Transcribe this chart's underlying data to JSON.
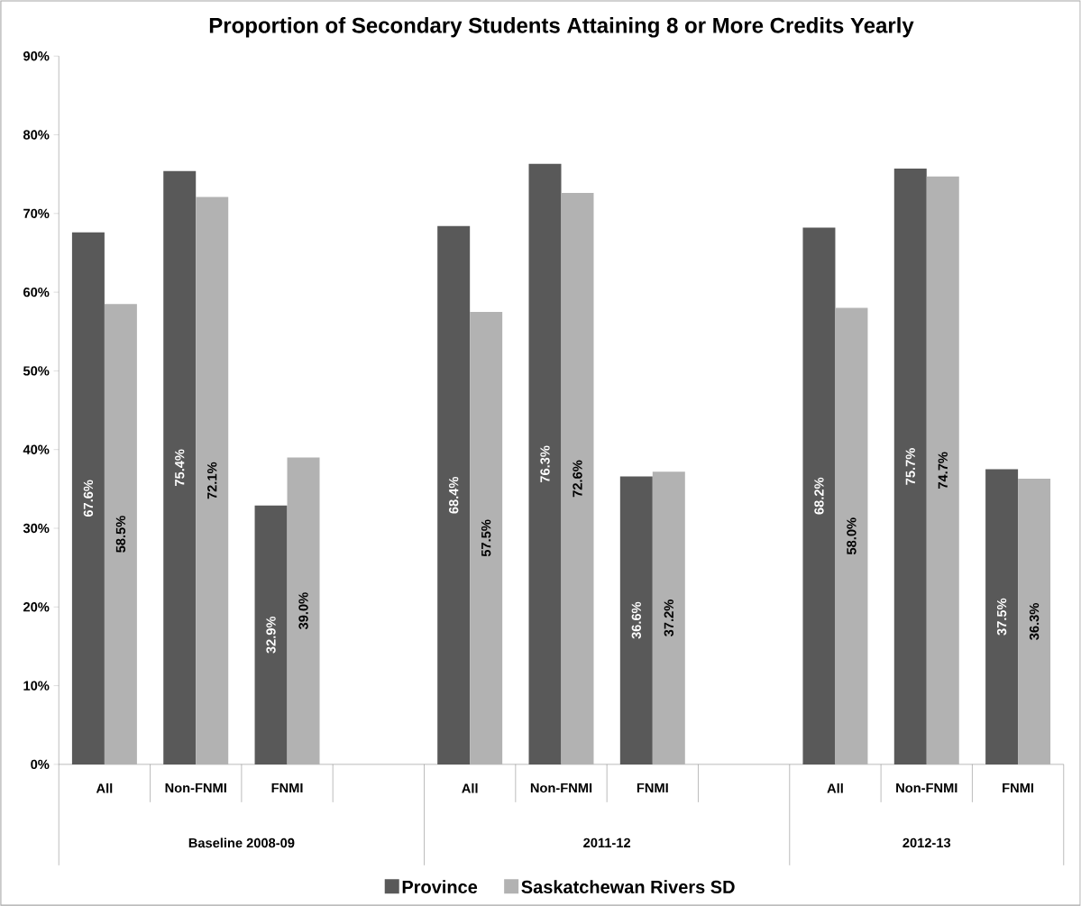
{
  "chart_data": {
    "type": "bar",
    "title": "Proportion of Secondary Students Attaining 8 or More Credits Yearly",
    "categories": [
      "All",
      "Non-FNMI",
      "FNMI",
      null,
      "All",
      "Non-FNMI",
      "FNMI",
      null,
      "All",
      "Non-FNMI",
      "FNMI"
    ],
    "series": [
      {
        "name": "Province",
        "color": "#595959",
        "values": [
          67.6,
          75.4,
          32.9,
          null,
          68.4,
          76.3,
          36.6,
          null,
          68.2,
          75.7,
          37.5
        ],
        "value_labels": [
          "67.6%",
          "75.4%",
          "32.9%",
          null,
          "68.4%",
          "76.3%",
          "36.6%",
          null,
          "68.2%",
          "75.7%",
          "37.5%"
        ]
      },
      {
        "name": "Saskatchewan Rivers SD",
        "color": "#b2b2b2",
        "values": [
          58.5,
          72.1,
          39.0,
          null,
          57.5,
          72.6,
          37.2,
          null,
          58.0,
          74.7,
          36.3
        ],
        "value_labels": [
          "58.5%",
          "72.1%",
          "39.0%",
          null,
          "57.5%",
          "72.6%",
          "37.2%",
          null,
          "58.0%",
          "74.7%",
          "36.3%"
        ]
      }
    ],
    "ylim": [
      0,
      90
    ],
    "yticks": [
      {
        "value": 0,
        "label": "0%"
      },
      {
        "value": 10,
        "label": "10%"
      },
      {
        "value": 20,
        "label": "20%"
      },
      {
        "value": 30,
        "label": "30%"
      },
      {
        "value": 40,
        "label": "40%"
      },
      {
        "value": 50,
        "label": "50%"
      },
      {
        "value": 60,
        "label": "60%"
      },
      {
        "value": 70,
        "label": "70%"
      },
      {
        "value": 80,
        "label": "80%"
      },
      {
        "value": 90,
        "label": "90%"
      }
    ],
    "annotations": [
      "Baseline 2008-09",
      "2011-12",
      "2012-13"
    ],
    "legend": "bottom"
  }
}
